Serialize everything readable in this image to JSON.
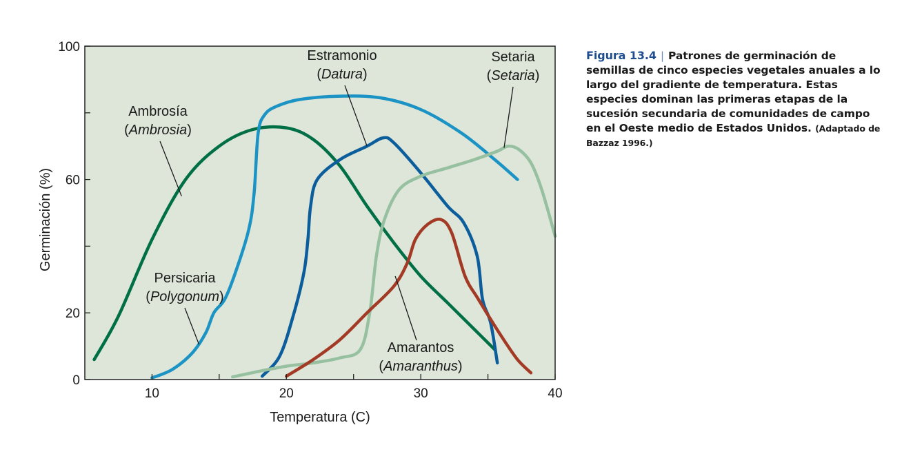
{
  "caption": {
    "figure_label": "Figura 13.4",
    "separator": "|",
    "text": "Patrones de germinación de semillas de cinco especies vegetales anuales a lo largo del gradiente de temperatura. Estas especies dominan las primeras etapas de la sucesión secundaria de comunidades de campo en el Oeste medio de Estados Unidos.",
    "source": "(Adaptado de Bazzaz 1996.)"
  },
  "chart_data": {
    "type": "line",
    "title": "",
    "xlabel": "Temperatura (C)",
    "ylabel": "Germinación (%)",
    "xlim": [
      5,
      40
    ],
    "ylim": [
      0,
      100
    ],
    "x_ticks": [
      10,
      15,
      20,
      25,
      30,
      35,
      40
    ],
    "x_tick_labels": [
      "10",
      "",
      "20",
      "",
      "30",
      "",
      "40"
    ],
    "y_ticks": [
      0,
      20,
      40,
      60,
      80,
      100
    ],
    "y_tick_labels": [
      "0",
      "20",
      "",
      "60",
      "",
      "100"
    ],
    "grid": false,
    "background": "#dde6d8",
    "series": [
      {
        "name": "Ambrosía",
        "latin": "Ambrosia",
        "color": "#006f45",
        "x": [
          5.7,
          7.5,
          10,
          12.5,
          15,
          17.5,
          20,
          22,
          24,
          26,
          28,
          30,
          32,
          34,
          35.5
        ],
        "y": [
          6,
          19,
          42,
          60,
          70,
          75,
          75.5,
          72,
          64,
          52,
          41,
          31,
          23,
          15,
          9
        ]
      },
      {
        "name": "Persicaria",
        "latin": "Polygonum",
        "color": "#1b93c4",
        "x": [
          10,
          11.5,
          13,
          14,
          14.6,
          15.4,
          16.2,
          17.2,
          17.6,
          17.9,
          18.4,
          19.3,
          21,
          24,
          27,
          30,
          33,
          35.5,
          37.2
        ],
        "y": [
          0.5,
          3,
          8,
          14,
          20,
          24,
          32,
          45,
          56,
          74,
          79.5,
          82,
          84,
          85,
          84.5,
          81,
          74,
          66,
          60
        ]
      },
      {
        "name": "Estramonio",
        "latin": "Datura",
        "color": "#0c5d9c",
        "x": [
          18.2,
          19.5,
          20.5,
          21.3,
          21.6,
          21.8,
          22.3,
          24,
          26,
          27.2,
          28,
          30,
          32,
          33.2,
          34.2,
          34.6,
          35.2,
          35.7
        ],
        "y": [
          1,
          7,
          19,
          32,
          42,
          52,
          60,
          66,
          70,
          72.5,
          71,
          62,
          52,
          47,
          37,
          24,
          17,
          5
        ]
      },
      {
        "name": "Setaria",
        "latin": "Setaria",
        "color": "#97c0a1",
        "x": [
          16,
          18,
          20,
          22,
          24,
          25.5,
          26.2,
          26.7,
          27.3,
          28.4,
          30,
          32,
          34,
          35.7,
          36.5,
          37.3,
          38.2,
          39,
          40
        ],
        "y": [
          0.8,
          2.5,
          4,
          5,
          6.5,
          9,
          20,
          37,
          48,
          57,
          61,
          63.5,
          66,
          68.5,
          70,
          69,
          65,
          57,
          43
        ]
      },
      {
        "name": "Amarantos",
        "latin": "Amaranthus",
        "color": "#a23a25",
        "x": [
          20,
          22,
          24,
          26,
          28,
          29,
          29.6,
          30.5,
          31.5,
          32.3,
          33.3,
          34.3,
          36,
          37.2,
          38.2
        ],
        "y": [
          1,
          6,
          12,
          20,
          28,
          35,
          42,
          46.5,
          48,
          44,
          31,
          24,
          13,
          6,
          2
        ]
      }
    ],
    "annotations": [
      {
        "series": "Ambrosía",
        "line1": "Ambrosía",
        "line2": "Ambrosia",
        "target": [
          12.2,
          55
        ]
      },
      {
        "series": "Persicaria",
        "line1": "Persicaria",
        "line2": "Polygonum",
        "target": [
          13.5,
          10.5
        ]
      },
      {
        "series": "Estramonio",
        "line1": "Estramonio",
        "line2": "Datura",
        "target": [
          26,
          70
        ]
      },
      {
        "series": "Setaria",
        "line1": "Setaria",
        "line2": "Setaria",
        "target": [
          36.2,
          69.5
        ]
      },
      {
        "series": "Amarantos",
        "line1": "Amarantos",
        "line2": "Amaranthus",
        "target": [
          28.1,
          31
        ]
      }
    ]
  }
}
